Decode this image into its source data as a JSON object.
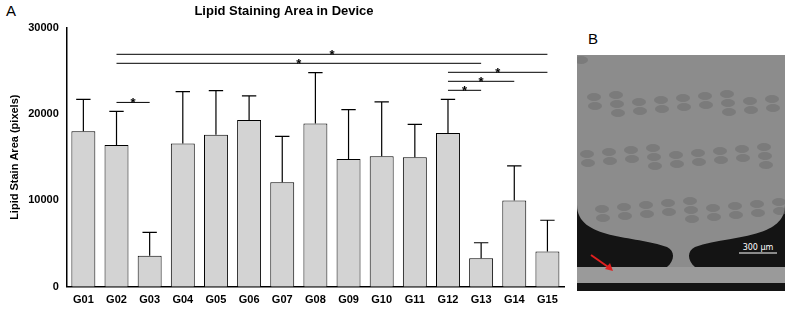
{
  "chart_data": {
    "type": "bar",
    "title": "Lipid Staining Area in Device",
    "y_label": "Lipid Stain Area (pixels)",
    "categories": [
      "G01",
      "G02",
      "G03",
      "G04",
      "G05",
      "G06",
      "G07",
      "G08",
      "G09",
      "G10",
      "G11",
      "G12",
      "G13",
      "G14",
      "G15"
    ],
    "values": [
      18000,
      16400,
      3600,
      16600,
      17600,
      19300,
      12100,
      18900,
      14800,
      15100,
      15000,
      17800,
      3300,
      10000,
      4100
    ],
    "errors": [
      3700,
      3900,
      2700,
      6000,
      5100,
      2800,
      5300,
      5900,
      5700,
      6300,
      3800,
      3900,
      1800,
      4000,
      3600
    ],
    "color": "#d3d3d3",
    "ylim": [
      0,
      30000
    ],
    "yticks": [
      0,
      10000,
      20000,
      30000
    ],
    "grid": false,
    "comparisons": [
      {
        "from": "G02",
        "to": "G15",
        "label": "*"
      },
      {
        "from": "G02",
        "to": "G13",
        "label": "*"
      },
      {
        "from": "G02",
        "to": "G03",
        "label": "*"
      },
      {
        "from": "G12",
        "to": "G15",
        "label": "*"
      },
      {
        "from": "G12",
        "to": "G14",
        "label": "*"
      },
      {
        "from": "G12",
        "to": "G13",
        "label": "*"
      }
    ]
  },
  "panel_labels": [
    "A",
    "B"
  ],
  "image": {
    "scale_bar": "300 μm"
  }
}
